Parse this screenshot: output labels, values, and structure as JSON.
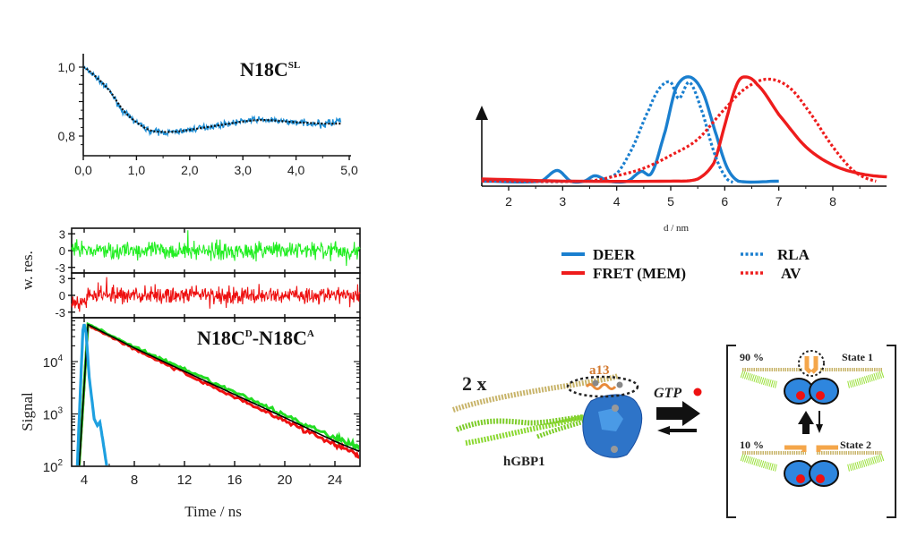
{
  "chart_data": [
    {
      "id": "deer-timetrace",
      "type": "line",
      "title": "N18C",
      "title_sup": "SL",
      "xlabel": "",
      "ylabel": "",
      "xlim": [
        0,
        5
      ],
      "ylim": [
        0.75,
        1.02
      ],
      "xticks": [
        "0,0",
        "1,0",
        "2,0",
        "3,0",
        "4,0",
        "5,0"
      ],
      "yticks": [
        "0,8",
        "1,0"
      ],
      "series": [
        {
          "name": "DEER signal",
          "style": "solid",
          "color": "#1f8fd6",
          "x": [
            0,
            0.25,
            0.5,
            0.75,
            1.0,
            1.25,
            1.5,
            1.75,
            2.0,
            2.25,
            2.5,
            2.75,
            3.0,
            3.25,
            3.5,
            3.75,
            4.0,
            4.25,
            4.5,
            4.75,
            4.85
          ],
          "y": [
            1.0,
            0.97,
            0.93,
            0.87,
            0.84,
            0.815,
            0.81,
            0.812,
            0.818,
            0.825,
            0.83,
            0.837,
            0.843,
            0.848,
            0.846,
            0.842,
            0.84,
            0.838,
            0.835,
            0.84,
            0.845
          ]
        },
        {
          "name": "Fit",
          "style": "dotted",
          "color": "#111111",
          "x": [
            0,
            0.25,
            0.5,
            0.75,
            1.0,
            1.25,
            1.5,
            1.75,
            2.0,
            2.25,
            2.5,
            2.75,
            3.0,
            3.25,
            3.5,
            3.75,
            4.0,
            4.25,
            4.5,
            4.75,
            4.85
          ],
          "y": [
            1.0,
            0.97,
            0.93,
            0.875,
            0.84,
            0.817,
            0.812,
            0.813,
            0.818,
            0.824,
            0.83,
            0.836,
            0.842,
            0.846,
            0.846,
            0.843,
            0.84,
            0.838,
            0.836,
            0.836,
            0.836
          ]
        }
      ]
    },
    {
      "id": "weighted-residuals",
      "type": "line",
      "ylabel": "w. res.",
      "yticks": [
        "3",
        "0",
        "-3"
      ],
      "ylim": [
        -4,
        4
      ],
      "xlim": [
        3,
        26
      ],
      "series": [
        {
          "name": "residuals green channel",
          "color": "#22ee22",
          "amplitude": 2.5
        },
        {
          "name": "residuals red channel",
          "color": "#ee1111",
          "amplitude": 2.5
        }
      ]
    },
    {
      "id": "fluorescence-decay",
      "type": "line",
      "title": "N18C",
      "title_sup_1": "D",
      "title_mid": "-N18C",
      "title_sup_2": "A",
      "xlabel": "Time / ns",
      "ylabel": "Signal",
      "yscale": "log",
      "xlim": [
        3,
        26
      ],
      "ylim": [
        100,
        60000
      ],
      "xticks": [
        "4",
        "8",
        "12",
        "16",
        "20",
        "24"
      ],
      "yticks": [
        {
          "base": "10",
          "exp": "4"
        },
        {
          "base": "10",
          "exp": "3"
        },
        {
          "base": "10",
          "exp": "2"
        }
      ],
      "series": [
        {
          "name": "IRF",
          "color": "#1ea0e0",
          "x": [
            3.45,
            3.7,
            3.9,
            4.0,
            4.15,
            4.4,
            4.8,
            5.05,
            5.25,
            5.5,
            5.8
          ],
          "y": [
            100,
            3000,
            40000,
            52000,
            35000,
            5000,
            800,
            600,
            700,
            300,
            100
          ]
        },
        {
          "name": "Green decay",
          "color": "#22dd22",
          "x": [
            3.6,
            4.3,
            8,
            12,
            16,
            20,
            24,
            26
          ],
          "y": [
            100,
            52000,
            19000,
            7000,
            2600,
            950,
            350,
            220
          ]
        },
        {
          "name": "Red decay",
          "color": "#ee1111",
          "x": [
            3.6,
            4.3,
            8,
            12,
            16,
            20,
            24,
            26
          ],
          "y": [
            100,
            50000,
            17500,
            6000,
            2100,
            750,
            260,
            160
          ]
        },
        {
          "name": "Fit",
          "color": "#000000",
          "x": [
            3.6,
            4.3,
            8,
            12,
            16,
            20,
            24,
            26
          ],
          "y": [
            100,
            51000,
            18200,
            6500,
            2350,
            850,
            300,
            190
          ]
        }
      ]
    },
    {
      "id": "distance-distributions",
      "type": "line",
      "title": "",
      "xlabel": "d / nm",
      "ylabel": "",
      "xlim": [
        1.5,
        9.0
      ],
      "ylim": [
        0,
        1.1
      ],
      "xticks": [
        "2",
        "3",
        "4",
        "5",
        "6",
        "7",
        "8"
      ],
      "legend_position": "bottom",
      "series": [
        {
          "name": "DEER",
          "style": "solid",
          "color": "#1a7fcf",
          "x": [
            1.5,
            2.6,
            2.9,
            3.15,
            3.4,
            3.6,
            3.85,
            4.2,
            4.45,
            4.65,
            4.9,
            5.1,
            5.35,
            5.6,
            5.85,
            6.05,
            6.25,
            7.0
          ],
          "y": [
            0.03,
            0.03,
            0.13,
            0.03,
            0.03,
            0.08,
            0.03,
            0.03,
            0.12,
            0.11,
            0.5,
            0.9,
            1.0,
            0.85,
            0.45,
            0.15,
            0.03,
            0.03
          ]
        },
        {
          "name": "FRET (MEM)",
          "style": "solid",
          "color": "#ee1c1c",
          "x": [
            1.5,
            3.0,
            5.0,
            5.5,
            5.8,
            6.0,
            6.2,
            6.35,
            6.6,
            7.0,
            7.5,
            8.0,
            8.5,
            9.0
          ],
          "y": [
            0.05,
            0.03,
            0.03,
            0.05,
            0.2,
            0.55,
            0.9,
            1.0,
            0.93,
            0.65,
            0.35,
            0.18,
            0.1,
            0.07
          ]
        },
        {
          "name": "RLA",
          "style": "dotted",
          "color": "#1a7fcf",
          "x": [
            1.5,
            3.5,
            4.0,
            4.3,
            4.6,
            4.8,
            5.0,
            5.15,
            5.35,
            5.6,
            5.8,
            6.0,
            6.15
          ],
          "y": [
            0.03,
            0.03,
            0.1,
            0.35,
            0.7,
            0.9,
            0.95,
            0.8,
            0.95,
            0.65,
            0.3,
            0.08,
            0.02
          ]
        },
        {
          "name": "AV",
          "style": "dotted",
          "color": "#ee1c1c",
          "x": [
            1.5,
            3.5,
            4.0,
            4.5,
            5.0,
            5.5,
            6.0,
            6.4,
            6.8,
            7.2,
            7.6,
            8.0,
            8.4,
            8.8
          ],
          "y": [
            0.03,
            0.03,
            0.08,
            0.15,
            0.27,
            0.42,
            0.7,
            0.9,
            0.98,
            0.9,
            0.65,
            0.35,
            0.12,
            0.03
          ]
        }
      ]
    }
  ],
  "diagram": {
    "multiplier": "2 x",
    "helix_label": "a13",
    "protein_label": "hGBP1",
    "reaction_label": "GTP",
    "state1": {
      "percent": "90 %",
      "label": "State 1"
    },
    "state2": {
      "percent": "10 %",
      "label": "State 2"
    },
    "colors": {
      "gtp_dot": "#ee1111",
      "globular_domain": "#2e86de",
      "helix_a13": "#f4a64a",
      "middle_domain": "#9ae03a",
      "helix_stalk": "#c8b46a"
    }
  }
}
